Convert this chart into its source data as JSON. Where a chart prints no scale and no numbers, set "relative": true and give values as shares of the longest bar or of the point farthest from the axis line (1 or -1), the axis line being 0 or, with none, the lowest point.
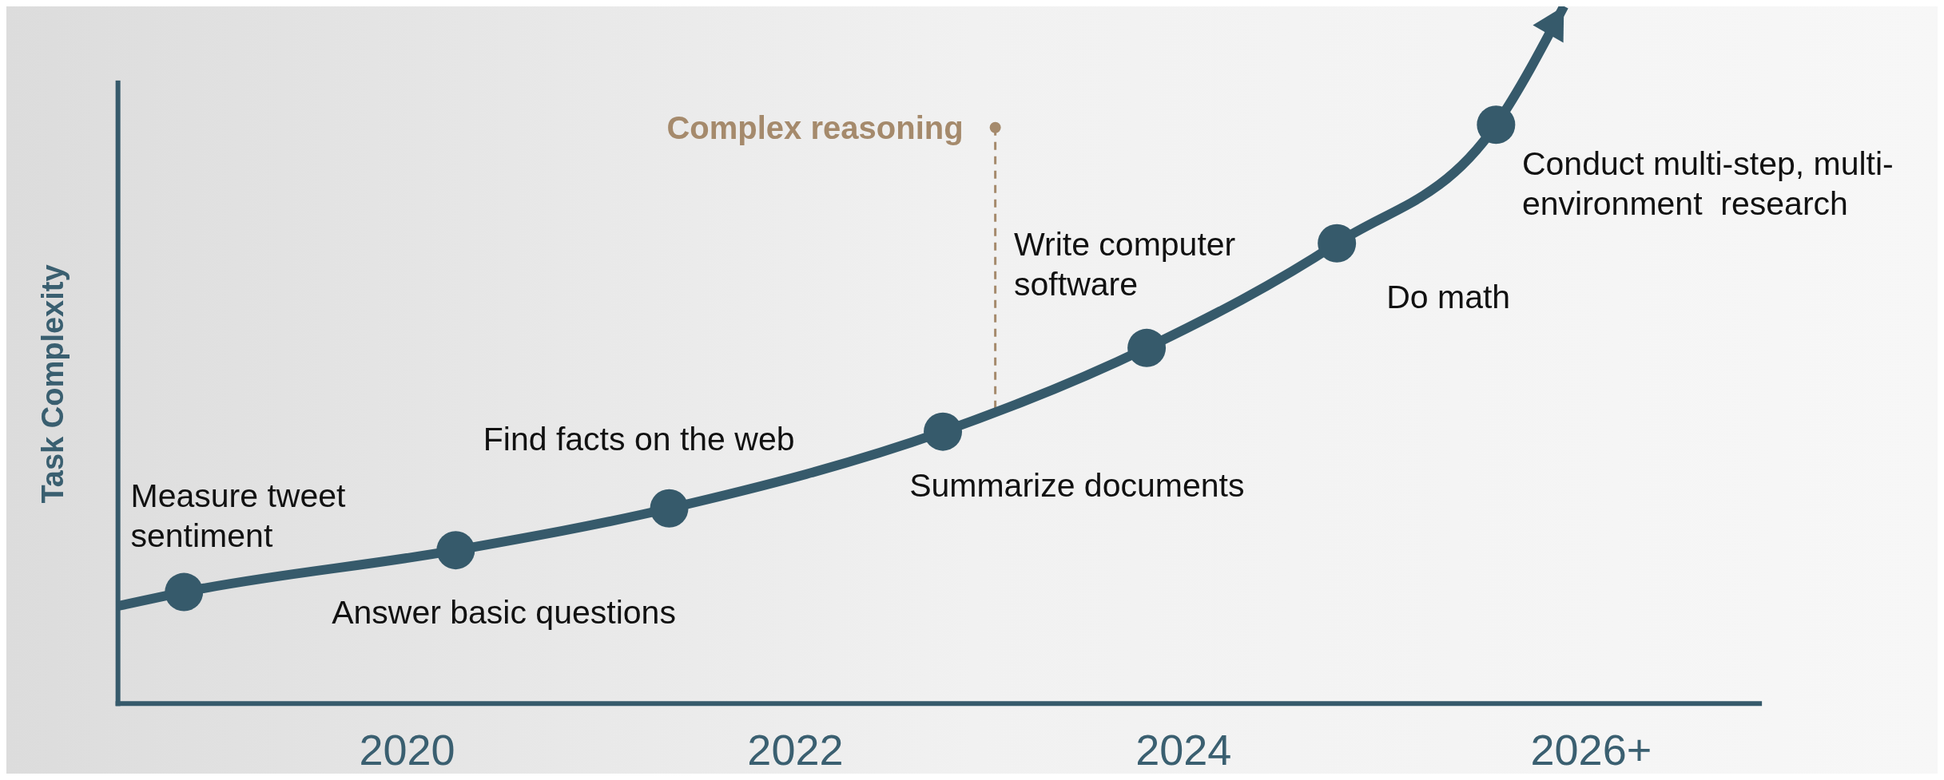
{
  "chart_data": {
    "type": "line",
    "ylabel": "Task Complexity",
    "relative": true,
    "grid": false,
    "xlim": [
      2018.51,
      2026.98
    ],
    "xticks": [
      2020,
      2022,
      2024,
      {
        "value": 2026.1,
        "label": "2026+"
      }
    ],
    "series": [
      {
        "color": "#365a6b",
        "marker": "none",
        "x": [
          2018.51,
          2018.85,
          2020.25,
          2021.35,
          2022.76,
          2023.81,
          2024.79,
          2025.61,
          2025.96
        ],
        "values": [
          0.14,
          0.16,
          0.22,
          0.28,
          0.39,
          0.51,
          0.66,
          0.83,
          1
        ]
      },
      {
        "type": "scatter",
        "color": "#365a6b",
        "marker": "circle",
        "x": [
          2018.85,
          2020.25,
          2021.35,
          2022.76,
          2023.81,
          2024.79,
          2025.61
        ],
        "values": [
          0.16,
          0.22,
          0.28,
          0.39,
          0.51,
          0.66,
          0.83
        ]
      }
    ],
    "ref_lines": [
      {
        "axis": "x",
        "value": 2023.03,
        "label": "Complex reasoning",
        "color": "#a58a6c",
        "line_style": "dashed"
      }
    ],
    "annotations": [
      {
        "text": "Measure tweet\nsentiment",
        "x": 2018.85,
        "y": 0.16
      },
      {
        "text": "Answer basic questions",
        "x": 2020.25,
        "y": 0.22
      },
      {
        "text": "Find facts on the web",
        "x": 2021.35,
        "y": 0.28
      },
      {
        "text": "Summarize documents",
        "x": 2022.76,
        "y": 0.39
      },
      {
        "text": "Write computer\nsoftware",
        "x": 2023.81,
        "y": 0.51
      },
      {
        "text": "Do math",
        "x": 2024.79,
        "y": 0.66
      },
      {
        "text": "Conduct multi-step, multi-\nenvironment  research",
        "x": 2025.61,
        "y": 0.83
      }
    ]
  }
}
